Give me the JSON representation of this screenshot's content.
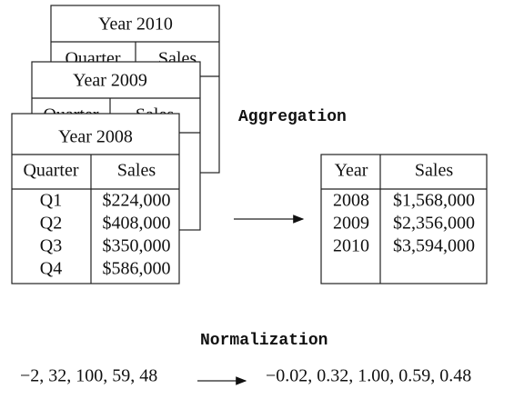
{
  "aggregation_label": "Aggregation",
  "input_tables": [
    {
      "title": "Year 2010",
      "columns": [
        "Quarter",
        "Sales"
      ]
    },
    {
      "title": "Year 2009",
      "columns": [
        "Quarter",
        "Sales"
      ]
    },
    {
      "title": "Year 2008",
      "columns": [
        "Quarter",
        "Sales"
      ],
      "rows": [
        [
          "Q1",
          "$224,000"
        ],
        [
          "Q2",
          "$408,000"
        ],
        [
          "Q3",
          "$350,000"
        ],
        [
          "Q4",
          "$586,000"
        ]
      ]
    }
  ],
  "output_table": {
    "columns": [
      "Year",
      "Sales"
    ],
    "rows": [
      [
        "2008",
        "$1,568,000"
      ],
      [
        "2009",
        "$2,356,000"
      ],
      [
        "2010",
        "$3,594,000"
      ]
    ]
  },
  "normalization_label": "Normalization",
  "normalization": {
    "input": "−2, 32, 100, 59, 48",
    "output": "−0.02, 0.32, 1.00, 0.59, 0.48"
  }
}
